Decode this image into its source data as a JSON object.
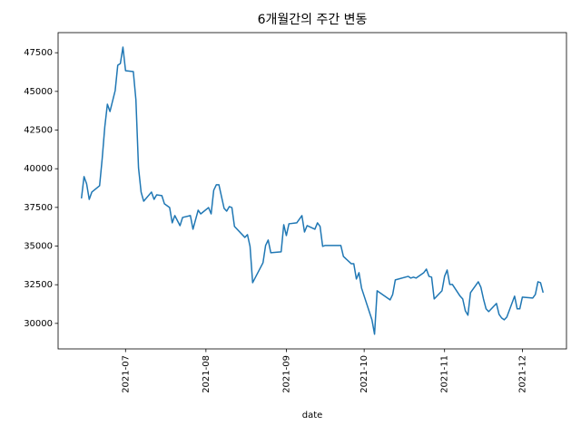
{
  "chart_data": {
    "type": "line",
    "title": "6개월간의 주간 변동",
    "xlabel": "date",
    "x": [
      "2021-06-14",
      "2021-06-15",
      "2021-06-16",
      "2021-06-17",
      "2021-06-18",
      "2021-06-21",
      "2021-06-22",
      "2021-06-23",
      "2021-06-24",
      "2021-06-25",
      "2021-06-27",
      "2021-06-28",
      "2021-06-29",
      "2021-06-30",
      "2021-07-01",
      "2021-07-04",
      "2021-07-05",
      "2021-07-06",
      "2021-07-07",
      "2021-07-08",
      "2021-07-11",
      "2021-07-12",
      "2021-07-13",
      "2021-07-15",
      "2021-07-16",
      "2021-07-18",
      "2021-07-19",
      "2021-07-20",
      "2021-07-22",
      "2021-07-23",
      "2021-07-26",
      "2021-07-27",
      "2021-07-29",
      "2021-07-30",
      "2021-08-02",
      "2021-08-03",
      "2021-08-04",
      "2021-08-05",
      "2021-08-06",
      "2021-08-08",
      "2021-08-09",
      "2021-08-10",
      "2021-08-11",
      "2021-08-12",
      "2021-08-16",
      "2021-08-17",
      "2021-08-18",
      "2021-08-19",
      "2021-08-23",
      "2021-08-24",
      "2021-08-25",
      "2021-08-26",
      "2021-08-30",
      "2021-08-31",
      "2021-09-01",
      "2021-09-02",
      "2021-09-05",
      "2021-09-07",
      "2021-09-08",
      "2021-09-09",
      "2021-09-12",
      "2021-09-13",
      "2021-09-14",
      "2021-09-15",
      "2021-09-16",
      "2021-09-22",
      "2021-09-23",
      "2021-09-26",
      "2021-09-27",
      "2021-09-28",
      "2021-09-29",
      "2021-09-30",
      "2021-10-04",
      "2021-10-05",
      "2021-10-06",
      "2021-10-11",
      "2021-10-12",
      "2021-10-13",
      "2021-10-18",
      "2021-10-19",
      "2021-10-20",
      "2021-10-21",
      "2021-10-24",
      "2021-10-25",
      "2021-10-26",
      "2021-10-27",
      "2021-10-28",
      "2021-10-31",
      "2021-11-01",
      "2021-11-02",
      "2021-11-03",
      "2021-11-04",
      "2021-11-07",
      "2021-11-08",
      "2021-11-09",
      "2021-11-10",
      "2021-11-11",
      "2021-11-14",
      "2021-11-15",
      "2021-11-16",
      "2021-11-17",
      "2021-11-18",
      "2021-11-21",
      "2021-11-22",
      "2021-11-23",
      "2021-11-24",
      "2021-11-25",
      "2021-11-28",
      "2021-11-29",
      "2021-11-30",
      "2021-12-01",
      "2021-12-05",
      "2021-12-06",
      "2021-12-07",
      "2021-12-08",
      "2021-12-09"
    ],
    "series": [
      {
        "color": "#1f77b4",
        "values": [
          38080,
          39490,
          39020,
          38020,
          38490,
          38900,
          40650,
          42700,
          44170,
          43700,
          45050,
          46690,
          46800,
          47860,
          46340,
          46280,
          44460,
          40070,
          38490,
          37900,
          38490,
          38020,
          38310,
          38260,
          37730,
          37490,
          36500,
          36970,
          36320,
          36850,
          36970,
          36090,
          37320,
          37080,
          37490,
          37080,
          38610,
          38960,
          38960,
          37440,
          37260,
          37550,
          37490,
          36270,
          35560,
          35740,
          34980,
          32630,
          33920,
          35040,
          35390,
          34570,
          34630,
          36380,
          35680,
          36440,
          36500,
          36970,
          35910,
          36320,
          36090,
          36500,
          36270,
          34980,
          35040,
          35040,
          34330,
          33860,
          33860,
          32870,
          33280,
          32280,
          30230,
          29300,
          32110,
          31520,
          31870,
          32810,
          33040,
          32930,
          32990,
          32930,
          33280,
          33510,
          33040,
          32990,
          31580,
          32110,
          33040,
          33450,
          32520,
          32520,
          31760,
          31580,
          30820,
          30530,
          31990,
          32690,
          32340,
          31580,
          30940,
          30760,
          31290,
          30590,
          30350,
          30230,
          30410,
          31760,
          30940,
          30940,
          31700,
          31640,
          31870,
          32690,
          32630,
          31990
        ]
      }
    ],
    "xlim": [
      "2021-06-05",
      "2021-12-18"
    ],
    "xticks": [
      {
        "value": "2021-07-01",
        "label": "2021-07"
      },
      {
        "value": "2021-08-01",
        "label": "2021-08"
      },
      {
        "value": "2021-09-01",
        "label": "2021-09"
      },
      {
        "value": "2021-10-01",
        "label": "2021-10"
      },
      {
        "value": "2021-11-01",
        "label": "2021-11"
      },
      {
        "value": "2021-12-01",
        "label": "2021-12"
      }
    ],
    "ylim": [
      28350,
      48800
    ],
    "yticks": [
      30000,
      32500,
      35000,
      37500,
      40000,
      42500,
      45000,
      47500
    ],
    "grid": false
  }
}
